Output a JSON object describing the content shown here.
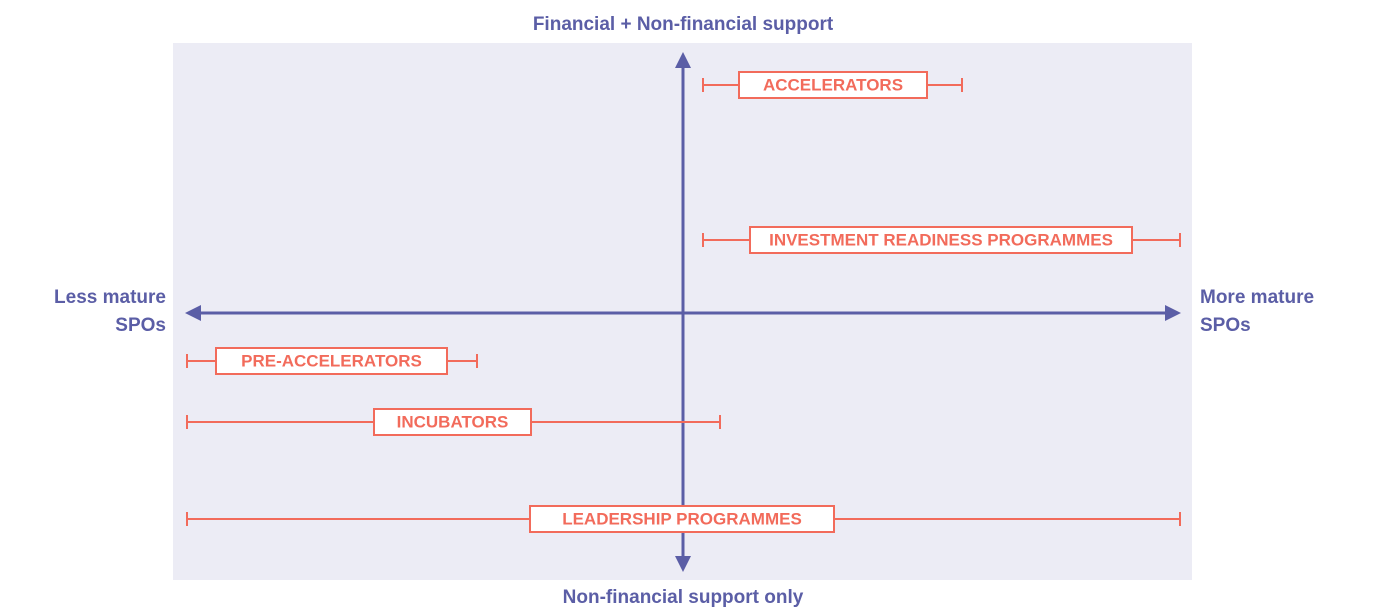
{
  "axes": {
    "top": "Financial + Non-financial support",
    "bottom": "Non-financial support only",
    "left": [
      "Less mature",
      "SPOs"
    ],
    "right": [
      "More mature",
      "SPOs"
    ]
  },
  "programmes": [
    {
      "label": "ACCELERATORS"
    },
    {
      "label": "INVESTMENT READINESS PROGRAMMES"
    },
    {
      "label": "PRE-ACCELERATORS"
    },
    {
      "label": "INCUBATORS"
    },
    {
      "label": "LEADERSHIP PROGRAMMES"
    }
  ]
}
